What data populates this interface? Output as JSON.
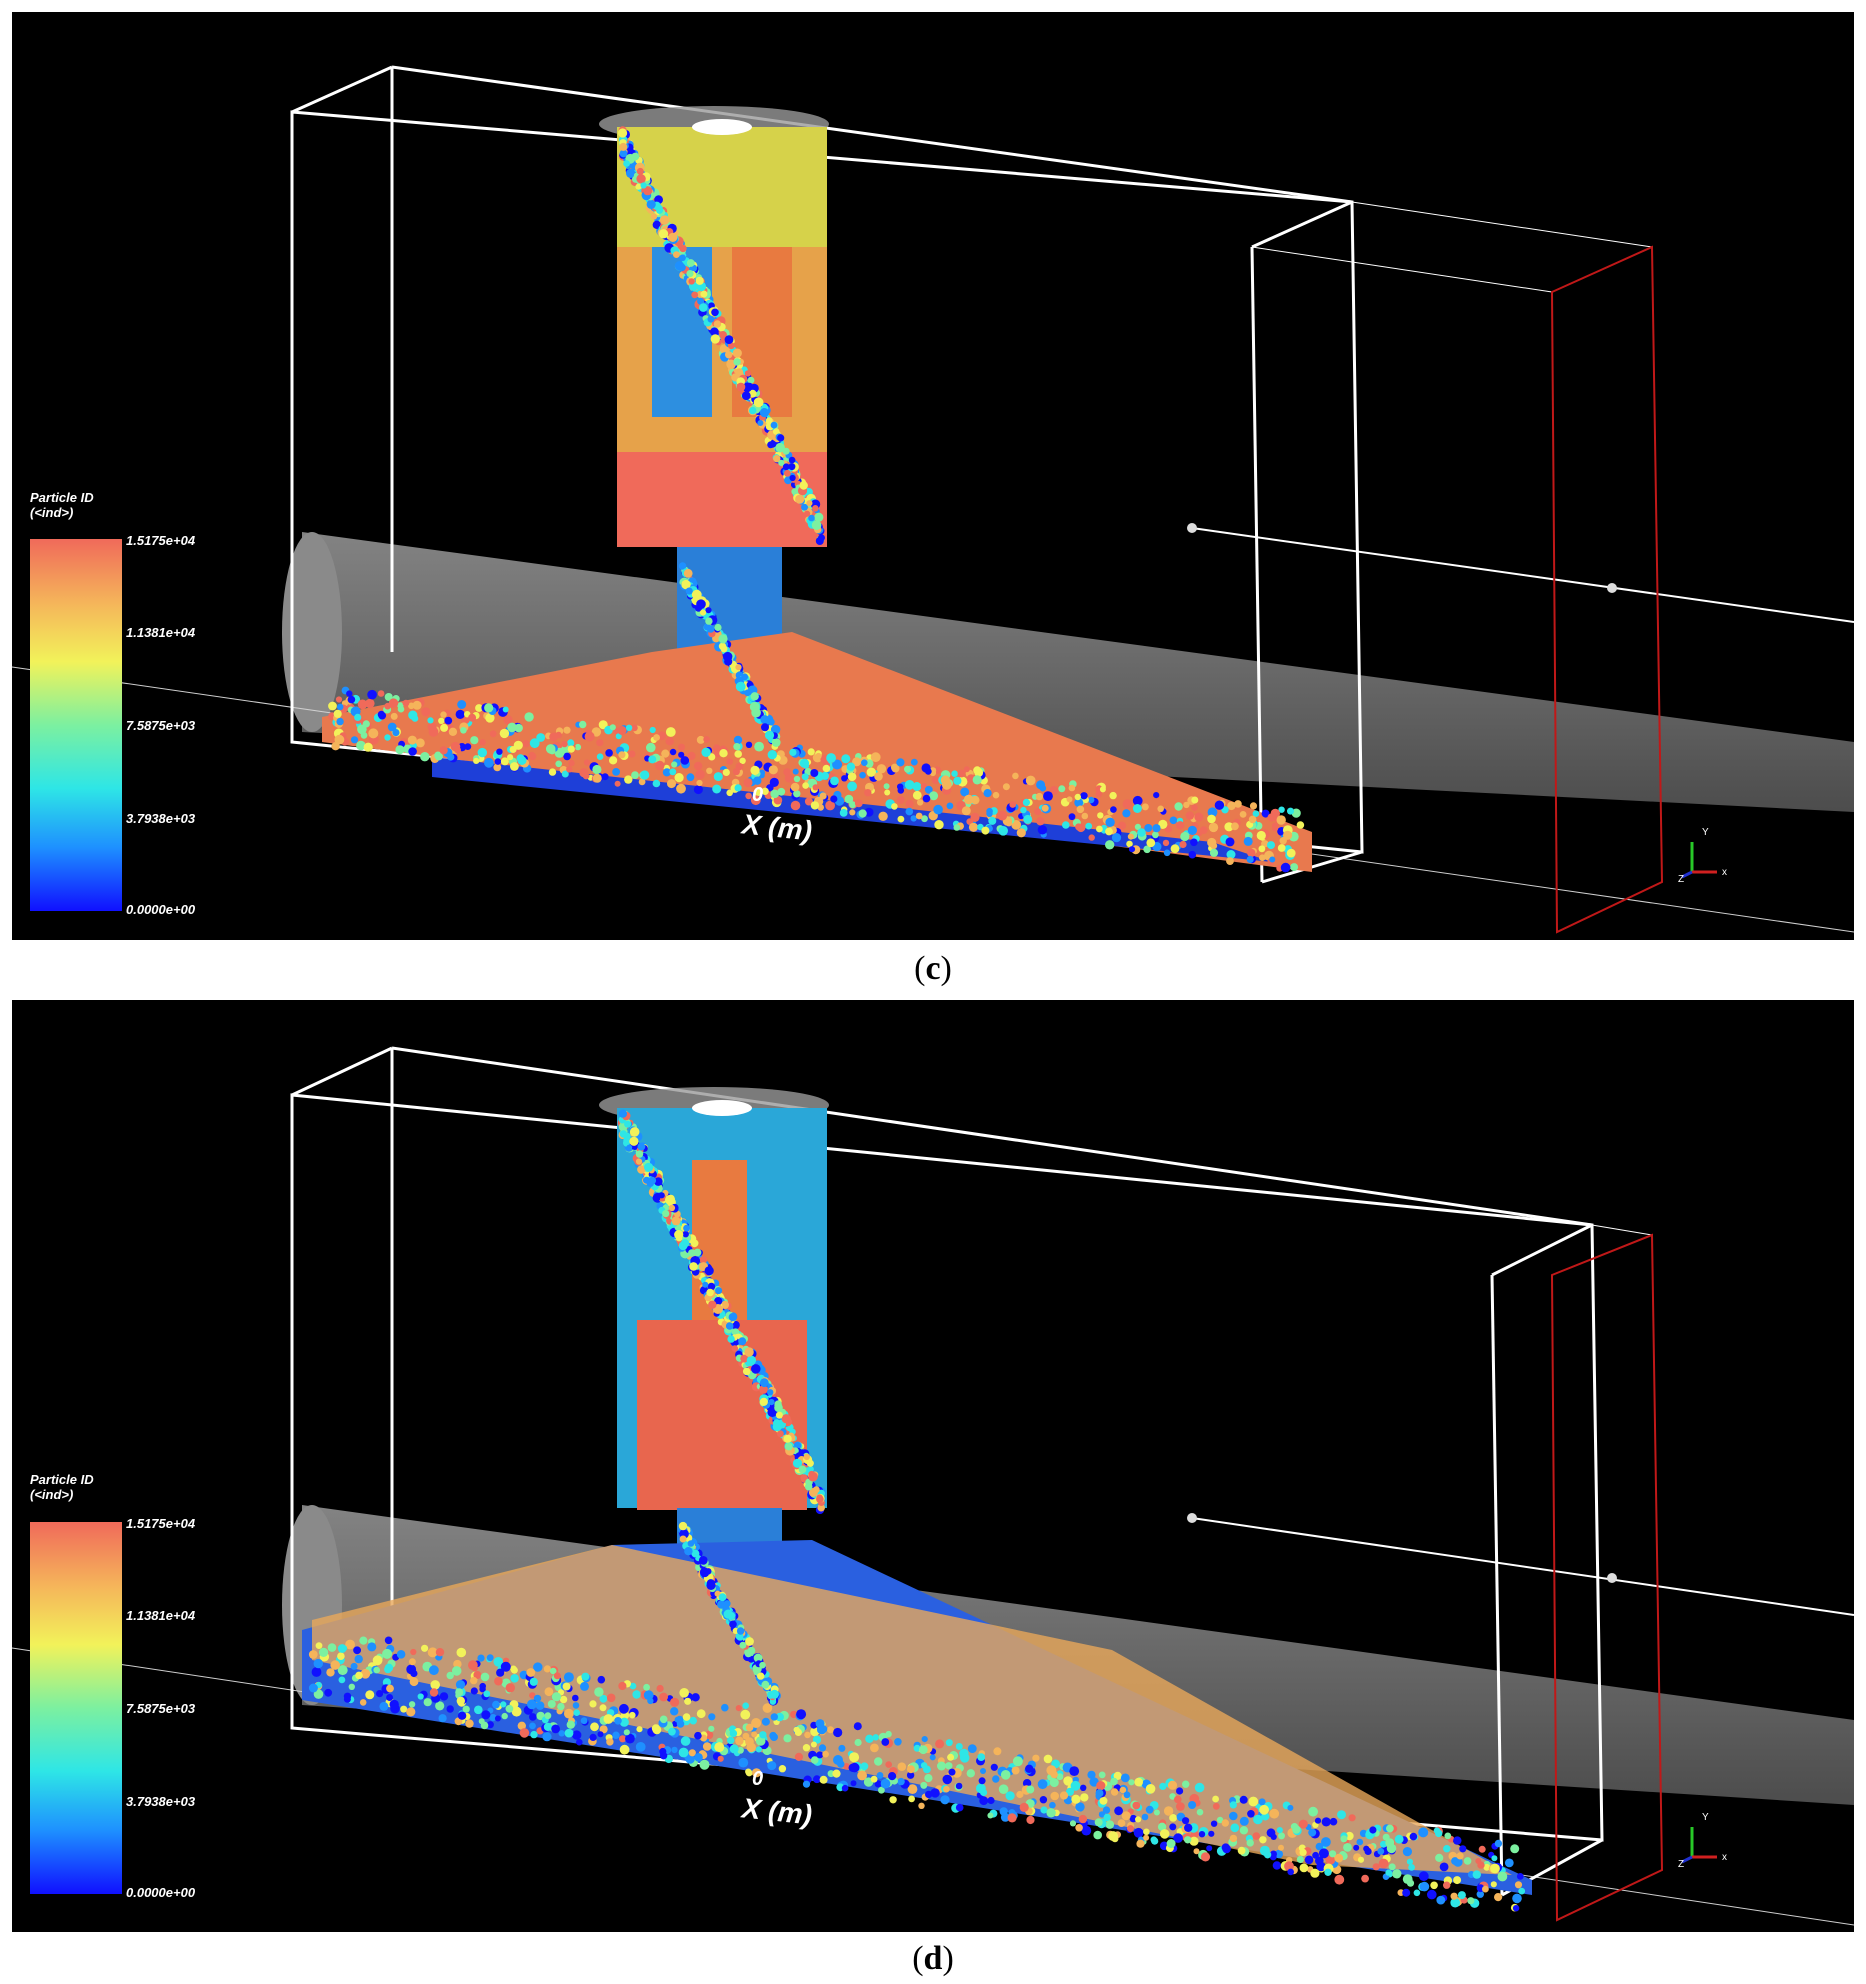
{
  "panels": [
    {
      "id": "c",
      "caption_letter": "c",
      "legend": {
        "title_line1": "Particle ID",
        "title_line2": "(<ind>)",
        "ticks": [
          "1.5175e+04",
          "1.1381e+04",
          "7.5875e+03",
          "3.7938e+03",
          "0.0000e+00"
        ]
      },
      "axis_zero": "0",
      "axis_label": "X (m)",
      "triad": {
        "x": "x",
        "y": "Y",
        "z": "Z"
      }
    },
    {
      "id": "d",
      "caption_letter": "d",
      "legend": {
        "title_line1": "Particle ID",
        "title_line2": "(<ind>)",
        "ticks": [
          "1.5175e+04",
          "1.1381e+04",
          "7.5875e+03",
          "3.7938e+03",
          "0.0000e+00"
        ]
      },
      "axis_zero": "0",
      "axis_label": "X (m)",
      "triad": {
        "x": "x",
        "y": "Y",
        "z": "Z"
      }
    }
  ],
  "colormap": [
    "#1010ff",
    "#1e90ff",
    "#2ee6e6",
    "#7cf0a0",
    "#f2f25a",
    "#f5b45a",
    "#f06a5a"
  ]
}
